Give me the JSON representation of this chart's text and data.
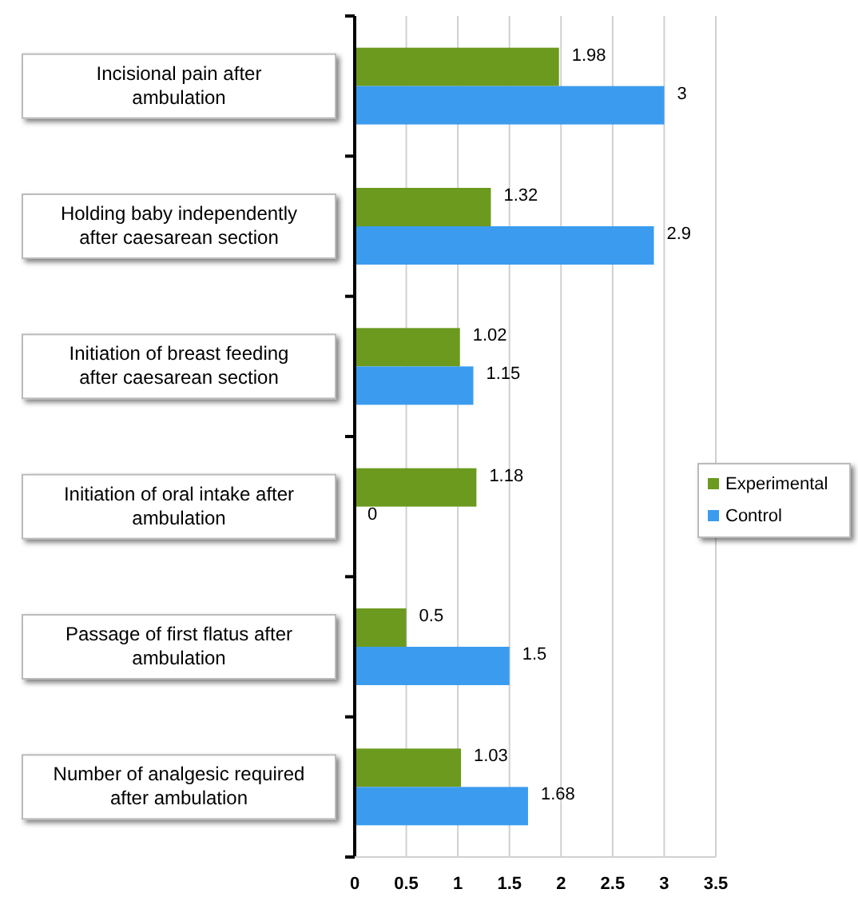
{
  "chart_data": {
    "type": "bar",
    "orientation": "horizontal",
    "categories": [
      "Incisional pain after ambulation",
      "Holding baby independently after caesarean section",
      "Initiation of breast feeding after caesarean section",
      "Initiation of oral intake after ambulation",
      "Passage of first flatus after ambulation",
      "Number of analgesic required after ambulation"
    ],
    "series": [
      {
        "name": "Experimental",
        "color": "#6b9a1f",
        "values": [
          1.98,
          1.32,
          1.02,
          1.18,
          0.5,
          1.03
        ]
      },
      {
        "name": "Control",
        "color": "#3b9cef",
        "values": [
          3,
          2.9,
          1.15,
          0,
          1.5,
          1.68
        ]
      }
    ],
    "xlim": [
      0,
      3.5
    ],
    "xticks": [
      0,
      0.5,
      1,
      1.5,
      2,
      2.5,
      3,
      3.5
    ],
    "grid": "x",
    "legend": "right",
    "data_labels": true
  }
}
